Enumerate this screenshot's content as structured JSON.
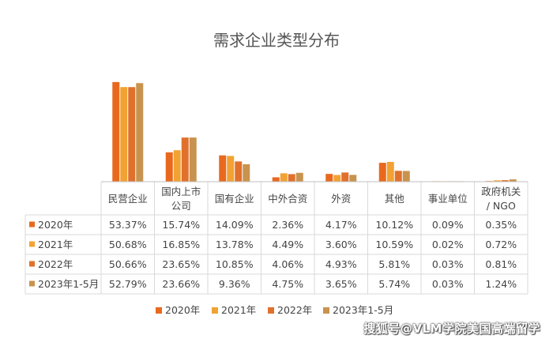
{
  "chart_data": {
    "type": "bar",
    "title": "需求企业类型分布",
    "categories": [
      "民营企业",
      "国内上市公司",
      "国有企业",
      "中外合资",
      "外资",
      "其他",
      "事业单位",
      "政府机关 / NGO"
    ],
    "category_lines": [
      [
        "民营企业"
      ],
      [
        "国内上市",
        "公司"
      ],
      [
        "国有企业"
      ],
      [
        "中外合资"
      ],
      [
        "外资"
      ],
      [
        "其他"
      ],
      [
        "事业单位"
      ],
      [
        "政府机关",
        "/ NGO"
      ]
    ],
    "series": [
      {
        "name": "2020年",
        "color": "#E8691E",
        "values": [
          53.37,
          15.74,
          14.09,
          2.36,
          4.17,
          10.12,
          0.09,
          0.35
        ],
        "labels": [
          "53.37%",
          "15.74%",
          "14.09%",
          "2.36%",
          "4.17%",
          "10.12%",
          "0.09%",
          "0.35%"
        ]
      },
      {
        "name": "2021年",
        "color": "#F2A233",
        "values": [
          50.68,
          16.85,
          13.78,
          4.49,
          3.6,
          10.59,
          0.02,
          0.72
        ],
        "labels": [
          "50.68%",
          "16.85%",
          "13.78%",
          "4.49%",
          "3.60%",
          "10.59%",
          "0.02%",
          "0.72%"
        ]
      },
      {
        "name": "2022年",
        "color": "#E0712C",
        "values": [
          50.66,
          23.65,
          10.85,
          4.06,
          4.93,
          5.81,
          0.03,
          0.81
        ],
        "labels": [
          "50.66%",
          "23.65%",
          "10.85%",
          "4.06%",
          "4.93%",
          "5.81%",
          "0.03%",
          "0.81%"
        ]
      },
      {
        "name": "2023年1-5月",
        "color": "#C8934E",
        "values": [
          52.79,
          23.66,
          9.36,
          4.75,
          3.65,
          5.74,
          0.03,
          1.24
        ],
        "labels": [
          "52.79%",
          "23.66%",
          "9.36%",
          "4.75%",
          "3.65%",
          "5.74%",
          "0.03%",
          "1.24%"
        ]
      }
    ],
    "ylim": [
      0,
      55
    ],
    "legend_position": "bottom",
    "data_table": true
  },
  "watermark": "搜狐号@VLM学院美国高端留学"
}
